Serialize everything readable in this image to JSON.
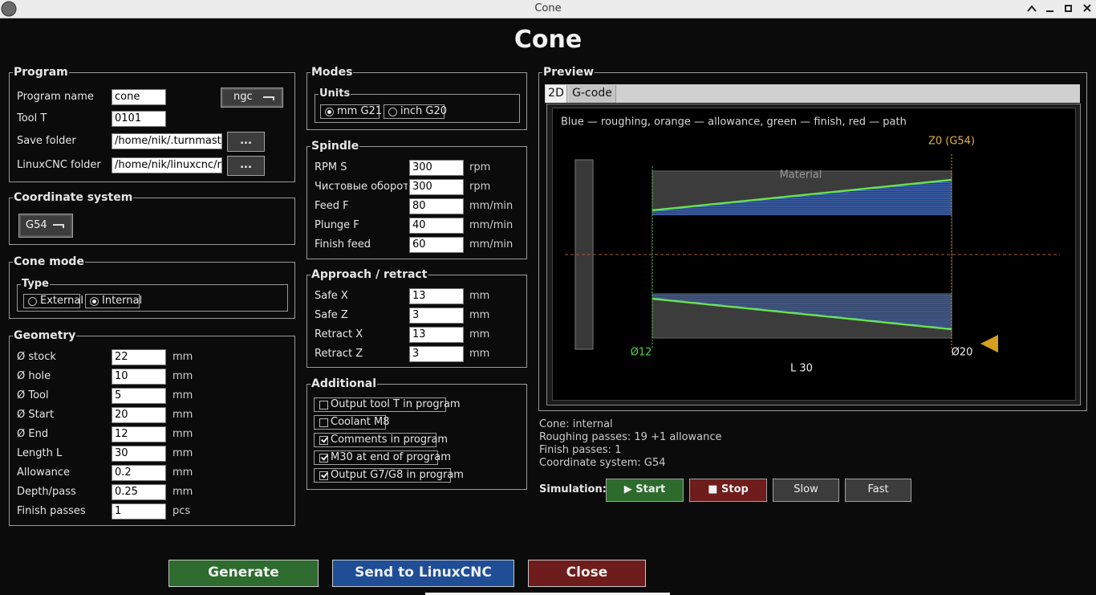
{
  "window": {
    "title": "Cone"
  },
  "header": {
    "title": "Cone"
  },
  "program": {
    "legend": "Program",
    "format": "ngc",
    "fields": [
      {
        "label": "Program name",
        "value": "cone"
      },
      {
        "label": "Tool T",
        "value": "0101"
      },
      {
        "label": "Save folder",
        "value": "/home/nik/.turnmaster/ge",
        "browse": "..."
      },
      {
        "label": "LinuxCNC folder",
        "value": "/home/nik/linuxcnc/nc_fil",
        "browse": "..."
      }
    ]
  },
  "coordinate_system": {
    "legend": "Coordinate system",
    "value": "G54"
  },
  "cone_mode": {
    "legend": "Cone mode",
    "type_legend": "Type",
    "options": [
      {
        "label": "External",
        "selected": false
      },
      {
        "label": "Internal",
        "selected": true
      }
    ]
  },
  "geometry": {
    "legend": "Geometry",
    "fields": [
      {
        "label": "Ø stock",
        "value": "22",
        "unit": "mm"
      },
      {
        "label": "Ø hole",
        "value": "10",
        "unit": "mm"
      },
      {
        "label": "Ø Tool",
        "value": "5",
        "unit": "mm"
      },
      {
        "label": "Ø Start",
        "value": "20",
        "unit": "mm"
      },
      {
        "label": "Ø End",
        "value": "12",
        "unit": "mm"
      },
      {
        "label": "Length L",
        "value": "30",
        "unit": "mm"
      },
      {
        "label": "Allowance",
        "value": "0.2",
        "unit": "mm"
      },
      {
        "label": "Depth/pass",
        "value": "0.25",
        "unit": "mm"
      },
      {
        "label": "Finish passes",
        "value": "1",
        "unit": "pcs"
      }
    ]
  },
  "modes": {
    "legend": "Modes",
    "units_legend": "Units",
    "options": [
      {
        "label": "mm G21",
        "selected": true
      },
      {
        "label": "inch G20",
        "selected": false
      }
    ]
  },
  "spindle": {
    "legend": "Spindle",
    "fields": [
      {
        "label": "RPM S",
        "value": "300",
        "unit": "rpm"
      },
      {
        "label": "Чистовые обороты",
        "value": "300",
        "unit": "rpm"
      },
      {
        "label": "Feed F",
        "value": "80",
        "unit": "mm/min"
      },
      {
        "label": "Plunge F",
        "value": "40",
        "unit": "mm/min"
      },
      {
        "label": "Finish feed",
        "value": "60",
        "unit": "mm/min"
      }
    ]
  },
  "approach": {
    "legend": "Approach / retract",
    "fields": [
      {
        "label": "Safe X",
        "value": "13",
        "unit": "mm"
      },
      {
        "label": "Safe Z",
        "value": "3",
        "unit": "mm"
      },
      {
        "label": "Retract X",
        "value": "13",
        "unit": "mm"
      },
      {
        "label": "Retract Z",
        "value": "3",
        "unit": "mm"
      }
    ]
  },
  "additional": {
    "legend": "Additional",
    "options": [
      {
        "label": "Output tool T in program",
        "checked": false
      },
      {
        "label": "Coolant M8",
        "checked": false
      },
      {
        "label": "Comments in program",
        "checked": true
      },
      {
        "label": "M30 at end of program",
        "checked": true
      },
      {
        "label": "Output G7/G8 in program",
        "checked": true
      }
    ]
  },
  "preview": {
    "legend": "Preview",
    "tabs": [
      {
        "label": "2D",
        "active": true
      },
      {
        "label": "G-code",
        "active": false
      }
    ],
    "caption": "Blue — roughing, orange — allowance, green — finish, red — path",
    "labels": {
      "material": "Material",
      "z0": "Z0 (G54)",
      "start_diameter": "Ø12",
      "end_diameter": "Ø20",
      "length": "L 30"
    }
  },
  "status": {
    "lines": [
      "Cone: internal",
      "Roughing passes: 19  +1 allowance",
      "Finish passes: 1",
      "Coordinate system: G54"
    ]
  },
  "simulation": {
    "label": "Simulation:",
    "buttons": [
      "▶ Start",
      "■ Stop",
      "Slow",
      "Fast"
    ]
  },
  "actions": [
    "Generate",
    "Send to LinuxCNC",
    "Close"
  ]
}
